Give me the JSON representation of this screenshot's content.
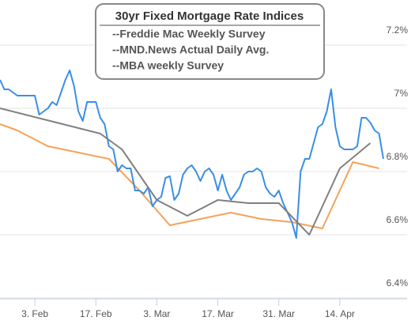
{
  "chart_data": {
    "type": "line",
    "title": "30yr Fixed Mortgage Rate Indices",
    "xlim": [
      26,
      114
    ],
    "xticks": [
      {
        "value": 34,
        "label": "3. Feb"
      },
      {
        "value": 48,
        "label": "17. Feb"
      },
      {
        "value": 62,
        "label": "3. Mar"
      },
      {
        "value": 76,
        "label": "17. Mar"
      },
      {
        "value": 90,
        "label": "31. Mar"
      },
      {
        "value": 104,
        "label": "14. Apr"
      }
    ],
    "ylim": [
      6.4,
      7.3
    ],
    "yticks": [
      {
        "value": 6.4,
        "label": "6.4%"
      },
      {
        "value": 6.6,
        "label": "6.6%"
      },
      {
        "value": 6.8,
        "label": "6.8%"
      },
      {
        "value": 7,
        "label": "7%"
      },
      {
        "value": 7.2,
        "label": "7.2%"
      }
    ],
    "grid": true,
    "series": [
      {
        "name": "--Freddie Mac Weekly Survey",
        "color": "#f4a259",
        "x": [
          26,
          30,
          37,
          44,
          51,
          58,
          65,
          72,
          79,
          86,
          93,
          100,
          107,
          113
        ],
        "values": [
          6.95,
          6.93,
          6.88,
          6.86,
          6.84,
          6.74,
          6.63,
          6.65,
          6.67,
          6.65,
          6.64,
          6.62,
          6.83,
          6.81
        ]
      },
      {
        "name": "--MND.News Actual Daily Avg.",
        "color": "#3a8ee6",
        "x": [
          26,
          27,
          28,
          29,
          30,
          33,
          34,
          35,
          36,
          37,
          38,
          39,
          40,
          41,
          42,
          43,
          44,
          45,
          46,
          47,
          48,
          49,
          50,
          51,
          52,
          53,
          54,
          55,
          56,
          57,
          58,
          59,
          60,
          61,
          62,
          63,
          64,
          65,
          66,
          67,
          68,
          69,
          70,
          71,
          72,
          73,
          74,
          75,
          76,
          77,
          78,
          79,
          80,
          81,
          82,
          83,
          84,
          85,
          86,
          87,
          88,
          89,
          90,
          91,
          92,
          93,
          94,
          95,
          96,
          97,
          98,
          99,
          100,
          101,
          102,
          103,
          104,
          105,
          106,
          107,
          108,
          109,
          110,
          111,
          112,
          113,
          114
        ],
        "values": [
          7.09,
          7.06,
          7.06,
          7.05,
          7.04,
          7.04,
          7.04,
          6.98,
          6.99,
          7.0,
          7.02,
          7.01,
          7.05,
          7.09,
          7.12,
          7.07,
          6.99,
          6.96,
          7.02,
          7.02,
          7.02,
          6.97,
          6.95,
          6.88,
          6.87,
          6.8,
          6.82,
          6.81,
          6.81,
          6.74,
          6.74,
          6.73,
          6.75,
          6.69,
          6.71,
          6.72,
          6.78,
          6.785,
          6.71,
          6.73,
          6.79,
          6.81,
          6.82,
          6.8,
          6.77,
          6.8,
          6.81,
          6.79,
          6.74,
          6.79,
          6.74,
          6.71,
          6.73,
          6.75,
          6.79,
          6.8,
          6.8,
          6.81,
          6.8,
          6.75,
          6.73,
          6.72,
          6.74,
          6.7,
          6.67,
          6.64,
          6.59,
          6.8,
          6.84,
          6.84,
          6.89,
          6.94,
          6.95,
          6.99,
          7.06,
          6.94,
          6.88,
          6.87,
          6.87,
          6.87,
          6.88,
          6.97,
          6.97,
          6.955,
          6.93,
          6.92,
          6.84
        ]
      },
      {
        "name": "--MBA weekly Survey",
        "color": "#808080",
        "x": [
          26,
          49,
          54,
          62,
          69,
          76,
          83,
          90,
          97,
          104,
          111
        ],
        "values": [
          7.0,
          6.92,
          6.87,
          6.71,
          6.66,
          6.71,
          6.7,
          6.7,
          6.6,
          6.81,
          6.89
        ]
      }
    ]
  }
}
